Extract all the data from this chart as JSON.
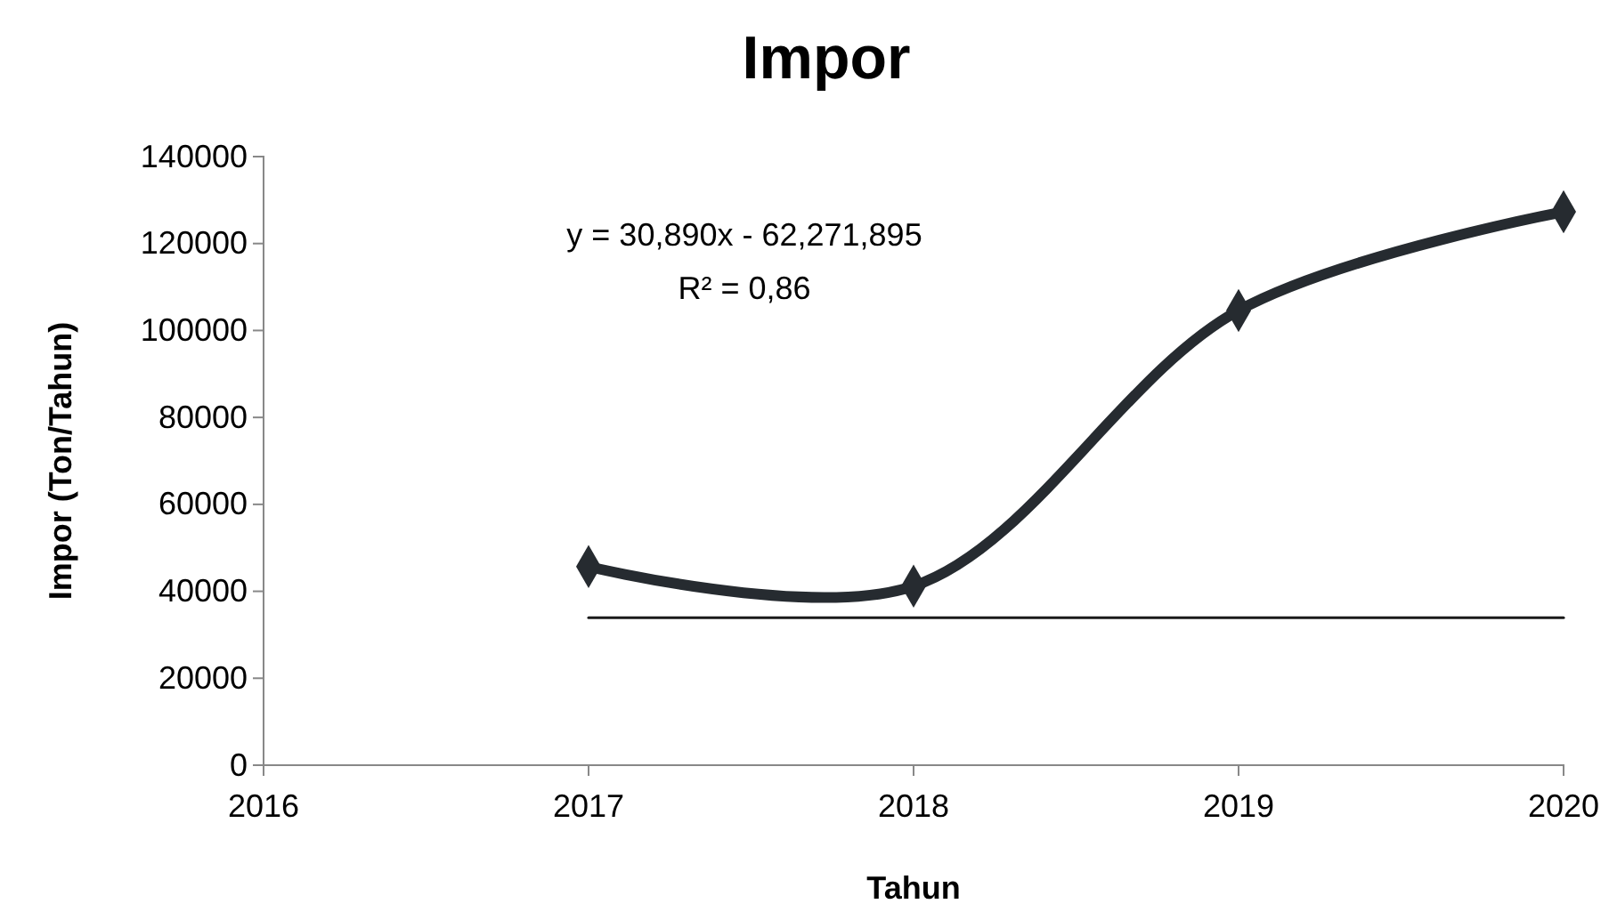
{
  "chart_data": {
    "type": "line",
    "title": "Impor",
    "xlabel": "Tahun",
    "ylabel": "Impor (Ton/Tahun)",
    "x": [
      2017,
      2018,
      2019,
      2020
    ],
    "series": [
      {
        "color": "#262b30",
        "values": [
          45700,
          41200,
          104600,
          127300
        ]
      },
      {
        "type": "line",
        "x": [
          2017,
          2020
        ],
        "values": [
          33900,
          33900
        ],
        "color": "#1a1a1a",
        "marker": "none"
      }
    ],
    "xlim": [
      2016,
      2020
    ],
    "xticks": [
      2016,
      2017,
      2018,
      2019,
      2020
    ],
    "ylim": [
      0,
      140000
    ],
    "yticks": [
      0,
      20000,
      40000,
      60000,
      80000,
      100000,
      120000,
      140000
    ],
    "grid": false,
    "marker": "diamond",
    "line_style": "solid",
    "annotations": [
      "y = 30,890x - 62,271,895",
      "R² = 0,86"
    ]
  }
}
